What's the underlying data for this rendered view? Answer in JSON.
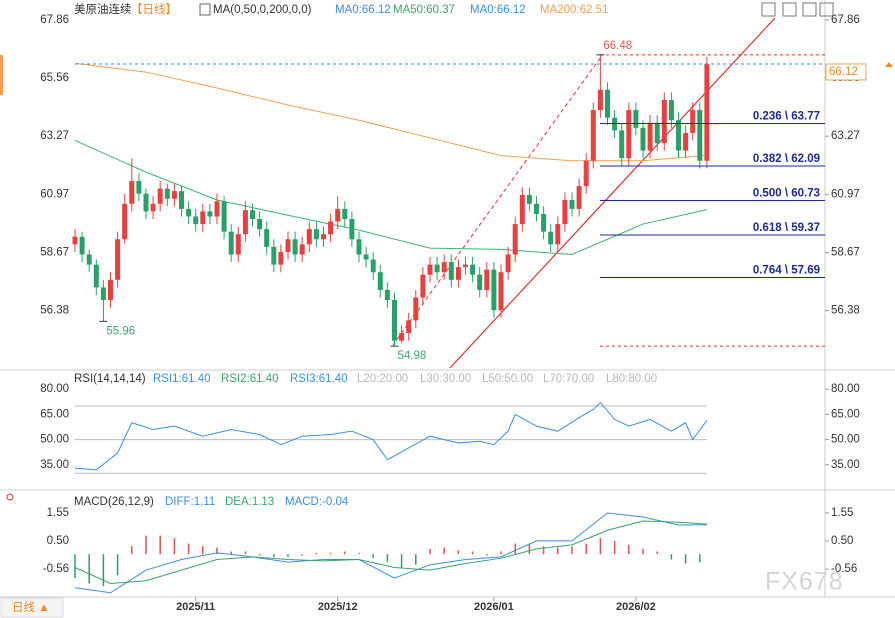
{
  "chart_data": [
    {
      "type": "candlestick",
      "title": "美原油连续",
      "period": "【日线】",
      "indicator": "MA(0,50,0,200,0,0)",
      "legend": [
        {
          "text": "MA0:66.12",
          "color": "#3a8ee6"
        },
        {
          "text": "MA50:60.37",
          "color": "#3aa66a"
        },
        {
          "text": "MA0:66.12",
          "color": "#3a8ee6"
        },
        {
          "text": "MA200:62.51",
          "color": "#f0a050"
        }
      ],
      "ylim": [
        54.04,
        68.25
      ],
      "yticks": [
        56.38,
        58.67,
        60.97,
        63.27,
        65.56,
        67.86
      ],
      "up_color": "#e8403f",
      "down_color": "#26a269",
      "candles": [
        [
          59.0,
          59.6,
          58.7,
          59.3
        ],
        [
          59.3,
          59.5,
          58.3,
          58.6
        ],
        [
          58.6,
          58.8,
          57.9,
          58.2
        ],
        [
          58.2,
          58.4,
          57.0,
          57.3
        ],
        [
          57.3,
          57.6,
          55.96,
          56.8
        ],
        [
          56.8,
          57.9,
          56.5,
          57.6
        ],
        [
          57.6,
          59.5,
          57.3,
          59.2
        ],
        [
          59.2,
          61.0,
          59.0,
          60.6
        ],
        [
          60.6,
          62.4,
          60.3,
          61.5
        ],
        [
          61.5,
          61.8,
          60.7,
          61.0
        ],
        [
          61.0,
          61.2,
          60.0,
          60.3
        ],
        [
          60.3,
          60.9,
          60.0,
          60.6
        ],
        [
          60.6,
          61.5,
          60.3,
          61.2
        ],
        [
          61.2,
          61.4,
          60.5,
          60.8
        ],
        [
          60.8,
          61.4,
          60.5,
          61.1
        ],
        [
          61.1,
          61.3,
          60.1,
          60.4
        ],
        [
          60.4,
          60.7,
          59.8,
          60.1
        ],
        [
          60.1,
          60.4,
          59.5,
          59.8
        ],
        [
          59.8,
          60.6,
          59.5,
          60.3
        ],
        [
          60.3,
          60.6,
          59.8,
          60.1
        ],
        [
          60.1,
          61.0,
          59.8,
          60.7
        ],
        [
          60.7,
          60.9,
          59.2,
          59.5
        ],
        [
          59.5,
          59.8,
          58.3,
          58.6
        ],
        [
          58.6,
          59.7,
          58.3,
          59.4
        ],
        [
          59.4,
          60.7,
          59.1,
          60.35
        ],
        [
          60.35,
          60.6,
          59.7,
          60.0
        ],
        [
          60.0,
          60.3,
          59.3,
          59.6
        ],
        [
          59.6,
          59.9,
          58.6,
          58.9
        ],
        [
          58.9,
          59.2,
          57.9,
          58.2
        ],
        [
          58.2,
          59.0,
          57.9,
          58.7
        ],
        [
          58.7,
          59.5,
          58.4,
          59.2
        ],
        [
          59.2,
          59.5,
          58.3,
          58.6
        ],
        [
          58.6,
          59.3,
          58.3,
          59.0
        ],
        [
          59.0,
          59.9,
          58.7,
          59.6
        ],
        [
          59.6,
          59.9,
          58.9,
          59.2
        ],
        [
          59.2,
          59.7,
          58.9,
          59.4
        ],
        [
          59.4,
          60.2,
          59.1,
          59.9
        ],
        [
          59.9,
          60.9,
          59.6,
          60.4
        ],
        [
          60.4,
          60.7,
          59.7,
          60.0
        ],
        [
          60.0,
          60.3,
          58.9,
          59.2
        ],
        [
          59.2,
          59.5,
          58.3,
          58.6
        ],
        [
          58.6,
          58.9,
          58.1,
          58.4
        ],
        [
          58.4,
          58.7,
          57.6,
          57.9
        ],
        [
          57.9,
          58.2,
          56.9,
          57.2
        ],
        [
          57.2,
          57.5,
          56.5,
          56.8
        ],
        [
          56.8,
          57.1,
          54.98,
          55.2
        ],
        [
          55.2,
          55.8,
          55.1,
          55.5
        ],
        [
          55.5,
          56.3,
          55.2,
          56.0
        ],
        [
          56.0,
          57.2,
          55.7,
          56.9
        ],
        [
          56.9,
          58.1,
          56.6,
          57.8
        ],
        [
          57.8,
          58.5,
          57.5,
          58.2
        ],
        [
          58.2,
          58.5,
          57.6,
          57.9
        ],
        [
          57.9,
          58.6,
          57.6,
          58.3
        ],
        [
          58.3,
          58.6,
          57.3,
          57.6
        ],
        [
          57.6,
          58.4,
          57.3,
          58.1
        ],
        [
          58.1,
          58.5,
          57.8,
          58.2
        ],
        [
          58.2,
          58.5,
          57.5,
          57.8
        ],
        [
          57.8,
          58.1,
          56.9,
          57.2
        ],
        [
          57.2,
          58.3,
          56.9,
          58.0
        ],
        [
          58.0,
          58.3,
          56.1,
          56.4
        ],
        [
          56.4,
          58.2,
          56.1,
          57.9
        ],
        [
          57.9,
          58.9,
          57.6,
          58.6
        ],
        [
          58.6,
          60.1,
          58.3,
          59.8
        ],
        [
          59.8,
          61.25,
          59.5,
          60.95
        ],
        [
          60.95,
          61.25,
          60.3,
          60.6
        ],
        [
          60.6,
          60.9,
          59.9,
          60.2
        ],
        [
          60.2,
          60.5,
          59.2,
          59.5
        ],
        [
          59.5,
          59.8,
          58.7,
          59.0
        ],
        [
          59.0,
          60.1,
          58.7,
          59.8
        ],
        [
          59.8,
          61.05,
          59.5,
          60.75
        ],
        [
          60.75,
          61.05,
          60.1,
          60.4
        ],
        [
          60.4,
          61.6,
          60.1,
          61.3
        ],
        [
          61.3,
          62.6,
          61.0,
          62.3
        ],
        [
          62.3,
          64.6,
          62.0,
          64.3
        ],
        [
          64.3,
          66.48,
          64.0,
          65.1
        ],
        [
          65.1,
          65.4,
          63.7,
          64.0
        ],
        [
          64.0,
          64.3,
          63.2,
          63.5
        ],
        [
          63.5,
          63.8,
          62.1,
          62.4
        ],
        [
          62.4,
          64.6,
          62.1,
          64.3
        ],
        [
          64.3,
          64.6,
          63.3,
          63.6
        ],
        [
          63.6,
          63.9,
          62.4,
          62.7
        ],
        [
          62.7,
          64.1,
          62.4,
          63.8
        ],
        [
          63.8,
          64.1,
          62.7,
          63.0
        ],
        [
          63.0,
          65.0,
          62.7,
          64.7
        ],
        [
          64.7,
          65.0,
          63.6,
          63.9
        ],
        [
          63.9,
          64.2,
          62.4,
          62.7
        ],
        [
          62.7,
          63.7,
          62.4,
          63.4
        ],
        [
          63.4,
          64.6,
          63.1,
          64.3
        ],
        [
          64.3,
          64.6,
          62.0,
          62.3
        ],
        [
          62.3,
          66.4,
          62.0,
          66.12
        ]
      ],
      "series": [
        {
          "name": "MA200",
          "color": "#f0a050",
          "x": [
            0,
            10,
            20,
            30,
            40,
            50,
            60,
            70,
            80,
            89
          ],
          "values": [
            66.15,
            65.8,
            65.17,
            64.5,
            63.9,
            63.2,
            62.5,
            62.3,
            62.3,
            62.51
          ]
        },
        {
          "name": "MA50",
          "color": "#3cb371",
          "x": [
            0,
            10,
            20,
            30,
            40,
            50,
            60,
            70,
            80,
            89
          ],
          "values": [
            63.1,
            61.85,
            60.75,
            60.15,
            59.56,
            58.85,
            58.8,
            58.6,
            59.8,
            60.37
          ]
        }
      ],
      "last_price": 66.12,
      "annotations": [
        {
          "x": 74,
          "value": 66.48,
          "color": "#e05050"
        },
        {
          "x": 4,
          "value": 55.96,
          "color": "#3aa66a"
        },
        {
          "x": 45,
          "value": 54.98,
          "color": "#3aa66a"
        }
      ],
      "fib_range": [
        54.98,
        66.48
      ],
      "fib": [
        {
          "value": 63.77,
          "label": "0.236 \\ 63.77"
        },
        {
          "value": 62.09,
          "label": "0.382 \\ 62.09"
        },
        {
          "value": 60.73,
          "label": "0.500 \\ 60.73"
        },
        {
          "value": 59.37,
          "label": "0.618 \\ 59.37"
        },
        {
          "value": 57.69,
          "label": "0.764 \\ 57.69"
        }
      ]
    },
    {
      "type": "line",
      "title": "RSI(14,14,14)",
      "legend": [
        {
          "text": "RSI1:61.40",
          "color": "#3a8ee6"
        },
        {
          "text": "RSI2:61.40",
          "color": "#3aa66a"
        },
        {
          "text": "RSI3:61.40",
          "color": "#3a8ee6"
        },
        {
          "text": "L20:20.00",
          "color": "#b8b8b8"
        },
        {
          "text": "L30:30.00",
          "color": "#b8b8b8"
        },
        {
          "text": "L50:50.00",
          "color": "#b8b8b8"
        },
        {
          "text": "L70:70.00",
          "color": "#b8b8b8"
        },
        {
          "text": "L80:80.00",
          "color": "#b8b8b8"
        }
      ],
      "ylim": [
        20,
        90.2
      ],
      "yticks": [
        {
          "value": 35,
          "label": "35.00"
        },
        {
          "value": 50,
          "label": "50.00"
        },
        {
          "value": 65,
          "label": "65.00"
        },
        {
          "value": 80,
          "label": "80.00"
        }
      ],
      "levels": [
        30,
        50,
        70
      ],
      "series": [
        {
          "name": "RSI1",
          "color": "#3a8ee6",
          "x": [
            0,
            3,
            6,
            8,
            11,
            14,
            18,
            22,
            26,
            29,
            32,
            36,
            39,
            42,
            44,
            47,
            50,
            54,
            57,
            59,
            61,
            62,
            65,
            68,
            71,
            73,
            74,
            76,
            78,
            81,
            84,
            86,
            87,
            89
          ],
          "values": [
            33,
            32,
            42,
            60,
            56,
            58,
            52,
            56,
            53,
            47,
            52,
            53,
            55,
            50,
            38,
            45,
            52,
            48,
            49,
            47,
            55,
            65,
            58,
            55,
            63,
            68,
            72,
            62,
            58,
            62,
            55,
            60,
            50,
            61.4
          ]
        }
      ]
    },
    {
      "type": "macd",
      "title": "MACD(26,12,9)",
      "legend": [
        {
          "text": "DIFF:1.11",
          "color": "#3a8ee6"
        },
        {
          "text": "DEA:1.13",
          "color": "#3aa66a"
        },
        {
          "text": "MACD:-0.04",
          "color": "#3a8ee6"
        }
      ],
      "ylim": [
        -1.61,
        2.34
      ],
      "yticks": [
        -0.56,
        {
          "value": 0.5,
          "label": "0.50"
        },
        1.55
      ],
      "histogram": {
        "up_color": "#e05050",
        "down_color": "#26a269",
        "x": [
          0,
          2,
          4,
          6,
          8,
          10,
          12,
          14,
          16,
          18,
          20,
          22,
          24,
          26,
          28,
          30,
          32,
          34,
          36,
          38,
          40,
          42,
          44,
          46,
          48,
          50,
          52,
          54,
          56,
          58,
          60,
          62,
          64,
          66,
          68,
          70,
          72,
          74,
          76,
          78,
          80,
          82,
          84,
          86,
          88
        ],
        "values": [
          -0.9,
          -1.1,
          -1.2,
          -0.8,
          0.3,
          0.7,
          0.7,
          0.6,
          0.4,
          0.3,
          0.25,
          0.1,
          0.1,
          -0.05,
          -0.1,
          -0.1,
          -0.05,
          0.05,
          0.05,
          0.1,
          0.05,
          -0.15,
          -0.3,
          -0.5,
          -0.4,
          0.2,
          0.25,
          0.15,
          0.1,
          -0.05,
          0.1,
          0.4,
          0.4,
          0.3,
          0.25,
          0.3,
          0.4,
          0.6,
          0.5,
          0.35,
          0.2,
          0.1,
          -0.2,
          -0.35,
          -0.3
        ]
      },
      "series": [
        {
          "name": "DIFF",
          "color": "#3a8ee6",
          "x": [
            0,
            5,
            10,
            15,
            20,
            25,
            30,
            35,
            40,
            45,
            50,
            55,
            60,
            65,
            70,
            75,
            80,
            85,
            89
          ],
          "values": [
            -1.26,
            -1.45,
            -0.6,
            -0.2,
            0.05,
            -0.1,
            -0.3,
            -0.2,
            -0.2,
            -0.9,
            -0.4,
            -0.2,
            -0.1,
            0.5,
            0.5,
            1.55,
            1.4,
            1.1,
            1.11
          ]
        },
        {
          "name": "DEA",
          "color": "#3aa66a",
          "x": [
            0,
            5,
            10,
            15,
            20,
            25,
            30,
            35,
            40,
            45,
            50,
            55,
            60,
            65,
            70,
            75,
            80,
            85,
            89
          ],
          "values": [
            -0.5,
            -1.1,
            -1.0,
            -0.6,
            -0.2,
            -0.1,
            -0.2,
            -0.25,
            -0.2,
            -0.5,
            -0.6,
            -0.35,
            -0.15,
            0.2,
            0.35,
            0.9,
            1.25,
            1.2,
            1.13
          ]
        }
      ],
      "xticks": [
        {
          "value": 17,
          "label": "2025/11"
        },
        {
          "value": 37,
          "label": "2025/12"
        },
        {
          "value": 59,
          "label": "2026/01"
        },
        {
          "value": 79,
          "label": "2026/02"
        }
      ]
    }
  ],
  "period_button": "日线 ▲",
  "watermark": "FX678"
}
